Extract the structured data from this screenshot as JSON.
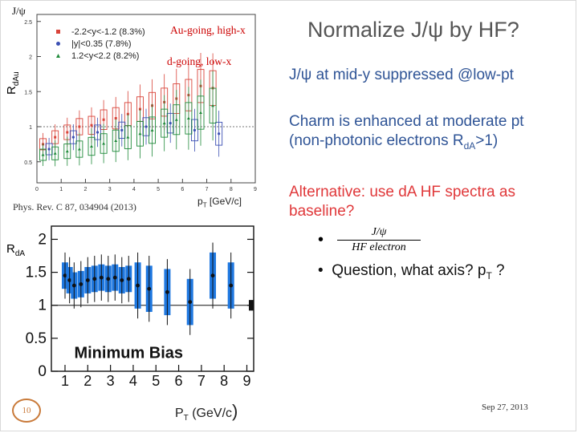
{
  "slide": {
    "title": "Normalize J/ψ by HF?",
    "bullets": [
      {
        "text": "J/ψ at mid-y suppressed  @low-pt"
      },
      {
        "line1": "Charm is enhanced at moderate pt",
        "line2_pre": "(non-photonic electrons R",
        "line2_sub": "dA",
        "line2_post": ">1)"
      },
      {
        "line1": "Alternative: use dA HF spectra as",
        "line2": "baseline?"
      },
      {
        "frac_num": "J/ψ",
        "frac_den": "HF electron"
      },
      {
        "pre": "Question, what axis? p",
        "sub": "T",
        "post": " ?"
      }
    ],
    "page_number": "10",
    "date": "Sep 27, 2013"
  },
  "top_plot": {
    "corner_label": "J/ψ",
    "ylabel_main": "R",
    "ylabel_sub": "dAu",
    "xlabel_main": "p",
    "xlabel_sub": "T",
    "xlabel_unit": " [GeV/c]",
    "annot_au": "Au-going, high-x",
    "annot_d": "d-going, low-x",
    "reference": "Phys. Rev. C 87, 034904 (2013)",
    "legend": [
      {
        "label": "-2.2<y<-1.2 (8.3%)",
        "color": "#d9443a",
        "marker": "square"
      },
      {
        "label": "|y|<0.35 (7.8%)",
        "color": "#3b4fb3",
        "marker": "circle"
      },
      {
        "label": "1.2<y<2.2 (8.2%)",
        "color": "#1f8a3a",
        "marker": "triangle"
      }
    ],
    "y_ticks": [
      "0.5",
      "1",
      "1.5",
      "2",
      "2.5"
    ],
    "x_ticks": [
      "0",
      "1",
      "2",
      "3",
      "4",
      "5",
      "6",
      "7",
      "8",
      "9"
    ]
  },
  "bottom_plot": {
    "ylabel_main": "R",
    "ylabel_sub": "dA",
    "xlabel_main": "P",
    "xlabel_sub": "T",
    "xlabel_unit": " (GeV/c",
    "xlabel_paren": ")",
    "panel_label": "Minimum Bias",
    "y_ticks": [
      "0",
      "0.5",
      "1",
      "1.5",
      "2"
    ],
    "x_ticks": [
      "1",
      "2",
      "3",
      "4",
      "5",
      "6",
      "7",
      "8",
      "9"
    ]
  },
  "chart_data": [
    {
      "type": "scatter",
      "title": "",
      "xlabel": "pT [GeV/c]",
      "ylabel": "RdAu",
      "xlim": [
        0,
        9
      ],
      "ylim": [
        0.2,
        2.6
      ],
      "series": [
        {
          "name": "-2.2<y<-1.2 (8.3%)",
          "x": [
            0.25,
            0.75,
            1.25,
            1.75,
            2.25,
            2.75,
            3.25,
            3.75,
            4.25,
            4.75,
            5.25,
            5.75,
            6.25,
            6.75,
            7.25
          ],
          "y": [
            0.75,
            0.85,
            0.92,
            1.0,
            1.02,
            1.1,
            1.12,
            1.18,
            1.25,
            1.3,
            1.35,
            1.4,
            1.45,
            1.58,
            1.55
          ]
        },
        {
          "name": "|y|<0.35 (7.8%)",
          "x": [
            0.5,
            1.5,
            2.5,
            3.5,
            4.5,
            5.5,
            6.5,
            7.5
          ],
          "y": [
            0.68,
            0.85,
            0.92,
            0.95,
            1.0,
            1.05,
            0.95,
            0.9
          ]
        },
        {
          "name": "1.2<y<2.2 (8.2%)",
          "x": [
            0.25,
            0.75,
            1.25,
            1.75,
            2.25,
            2.75,
            3.25,
            3.75,
            4.25,
            4.75,
            5.25,
            5.75,
            6.25,
            6.75,
            7.25
          ],
          "y": [
            0.6,
            0.62,
            0.65,
            0.68,
            0.72,
            0.76,
            0.8,
            0.85,
            0.9,
            0.95,
            1.05,
            1.1,
            1.12,
            1.2,
            1.3
          ]
        }
      ]
    },
    {
      "type": "scatter",
      "title": "Minimum Bias",
      "xlabel": "PT (GeV/c)",
      "ylabel": "RdA",
      "xlim": [
        0.4,
        9.3
      ],
      "ylim": [
        0,
        2.2
      ],
      "series": [
        {
          "name": "",
          "x": [
            1.0,
            1.2,
            1.4,
            1.7,
            2.0,
            2.3,
            2.6,
            2.9,
            3.2,
            3.5,
            3.8,
            4.2,
            4.7,
            5.5,
            6.5,
            7.5,
            8.3
          ],
          "y": [
            1.45,
            1.38,
            1.3,
            1.32,
            1.38,
            1.4,
            1.42,
            1.4,
            1.42,
            1.38,
            1.4,
            1.3,
            1.25,
            1.2,
            1.05,
            1.45,
            1.3
          ]
        }
      ]
    }
  ]
}
